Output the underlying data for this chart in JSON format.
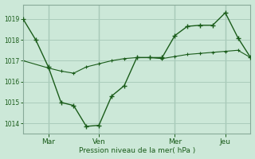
{
  "bg_color": "#cce8d8",
  "grid_color": "#aaccbb",
  "line_color": "#1a5c1a",
  "ylabel": "Pression niveau de la mer( hPa )",
  "ylim": [
    1013.5,
    1019.7
  ],
  "yticks": [
    1014,
    1015,
    1016,
    1017,
    1018,
    1019
  ],
  "x_tick_labels": [
    "Mar",
    "Ven",
    "Mer",
    "Jeu"
  ],
  "x_tick_positions": [
    24,
    72,
    144,
    192
  ],
  "x_vline_positions": [
    24,
    72,
    144,
    192
  ],
  "xlim": [
    0,
    216
  ],
  "line1_x": [
    0,
    12,
    24,
    36,
    48,
    60,
    72,
    84,
    96,
    108,
    120,
    132,
    144,
    156,
    168,
    180,
    192,
    204,
    216
  ],
  "line1_y": [
    1019.0,
    1018.0,
    1016.7,
    1015.0,
    1014.85,
    1013.85,
    1013.9,
    1015.3,
    1015.8,
    1017.15,
    1017.15,
    1017.15,
    1018.2,
    1018.65,
    1018.7,
    1018.7,
    1019.3,
    1018.1,
    1017.15
  ],
  "line2_x": [
    0,
    24,
    36,
    48,
    60,
    72,
    84,
    96,
    108,
    120,
    132,
    144,
    156,
    168,
    180,
    192,
    204,
    216
  ],
  "line2_y": [
    1017.0,
    1016.65,
    1016.5,
    1016.4,
    1016.7,
    1016.85,
    1017.0,
    1017.1,
    1017.15,
    1017.15,
    1017.1,
    1017.2,
    1017.3,
    1017.35,
    1017.4,
    1017.45,
    1017.5,
    1017.15
  ]
}
